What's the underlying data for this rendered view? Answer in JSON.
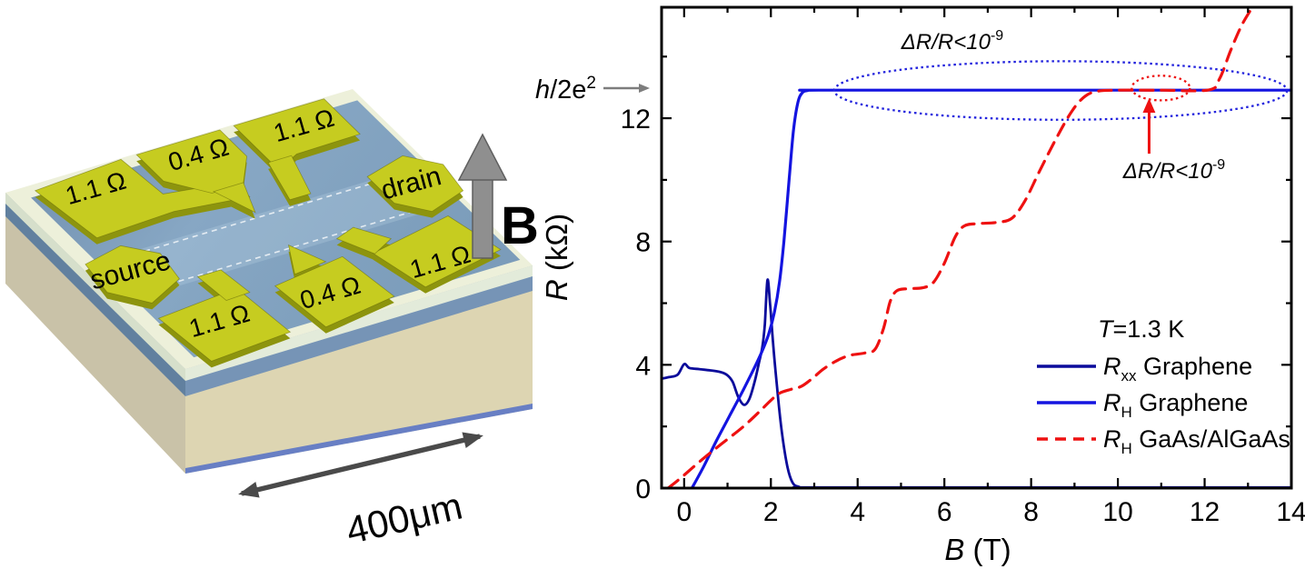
{
  "device_panel": {
    "contacts": [
      {
        "label": "1.1 Ω"
      },
      {
        "label": "0.4 Ω"
      },
      {
        "label": "1.1 Ω"
      },
      {
        "label": "drain"
      },
      {
        "label": "source"
      },
      {
        "label": "1.1 Ω"
      },
      {
        "label": "0.4 Ω"
      },
      {
        "label": "1.1 Ω"
      }
    ],
    "field_label": "B",
    "scale_label": "400μm",
    "gold_color": "#c6cc20",
    "surface_color": "#7e9cba"
  },
  "chart_data": {
    "type": "line",
    "title": "",
    "xlabel_italic": "B",
    "xlabel_rest": " (T)",
    "ylabel_italic": "R",
    "ylabel_rest": " (kΩ)",
    "xlim": [
      -0.52,
      14
    ],
    "ylim": [
      0,
      15.6
    ],
    "xticks_major": [
      0,
      2,
      4,
      6,
      8,
      10,
      12,
      14
    ],
    "xticks_minor": [
      1,
      3,
      5,
      7,
      9,
      11,
      13
    ],
    "yticks_major": [
      0,
      4,
      8,
      12
    ],
    "yticks_minor": [
      2,
      6,
      10,
      14
    ],
    "grid": false,
    "plateau_resistance_kohm": 12.906,
    "series": [
      {
        "name": "Rxx Graphene",
        "color": "#0b0b9b",
        "style": "solid",
        "width": 2.8,
        "points": [
          [
            -0.52,
            3.55
          ],
          [
            -0.35,
            3.6
          ],
          [
            -0.15,
            3.68
          ],
          [
            0.0,
            4.02
          ],
          [
            0.12,
            3.9
          ],
          [
            0.35,
            3.86
          ],
          [
            0.6,
            3.82
          ],
          [
            0.85,
            3.76
          ],
          [
            1.0,
            3.66
          ],
          [
            1.12,
            3.44
          ],
          [
            1.25,
            2.95
          ],
          [
            1.38,
            2.7
          ],
          [
            1.5,
            2.88
          ],
          [
            1.62,
            3.42
          ],
          [
            1.73,
            4.1
          ],
          [
            1.8,
            4.55
          ],
          [
            1.86,
            5.3
          ],
          [
            1.92,
            6.75
          ],
          [
            1.98,
            6.0
          ],
          [
            2.05,
            4.7
          ],
          [
            2.14,
            3.3
          ],
          [
            2.25,
            1.85
          ],
          [
            2.38,
            0.7
          ],
          [
            2.5,
            0.18
          ],
          [
            2.65,
            0.04
          ],
          [
            3.0,
            0.02
          ],
          [
            8.0,
            0.02
          ],
          [
            14,
            0.02
          ]
        ]
      },
      {
        "name": "RH Graphene",
        "color": "#1414e0",
        "style": "solid",
        "width": 3.2,
        "points": [
          [
            0.18,
            0.0
          ],
          [
            0.45,
            0.7
          ],
          [
            0.75,
            1.55
          ],
          [
            1.05,
            2.35
          ],
          [
            1.35,
            3.15
          ],
          [
            1.6,
            3.85
          ],
          [
            1.8,
            4.45
          ],
          [
            1.95,
            5.0
          ],
          [
            2.08,
            5.7
          ],
          [
            2.2,
            6.7
          ],
          [
            2.3,
            8.0
          ],
          [
            2.42,
            10.0
          ],
          [
            2.52,
            11.6
          ],
          [
            2.62,
            12.5
          ],
          [
            2.72,
            12.82
          ],
          [
            2.85,
            12.9
          ],
          [
            3.1,
            12.91
          ],
          [
            8,
            12.91
          ],
          [
            14,
            12.91
          ]
        ]
      },
      {
        "name": "RH GaAs/AlGaAs",
        "color": "#ee1111",
        "style": "dashed",
        "width": 3.2,
        "points": [
          [
            -0.37,
            0.0
          ],
          [
            -0.1,
            0.3
          ],
          [
            0.35,
            0.85
          ],
          [
            0.85,
            1.42
          ],
          [
            1.35,
            1.98
          ],
          [
            1.75,
            2.5
          ],
          [
            2.0,
            2.85
          ],
          [
            2.2,
            3.08
          ],
          [
            2.45,
            3.2
          ],
          [
            2.7,
            3.3
          ],
          [
            2.95,
            3.55
          ],
          [
            3.2,
            3.85
          ],
          [
            3.5,
            4.12
          ],
          [
            3.8,
            4.3
          ],
          [
            4.15,
            4.38
          ],
          [
            4.4,
            4.5
          ],
          [
            4.6,
            5.2
          ],
          [
            4.75,
            6.05
          ],
          [
            4.9,
            6.4
          ],
          [
            5.15,
            6.47
          ],
          [
            5.5,
            6.5
          ],
          [
            5.75,
            6.68
          ],
          [
            6.0,
            7.3
          ],
          [
            6.25,
            8.15
          ],
          [
            6.45,
            8.5
          ],
          [
            6.75,
            8.58
          ],
          [
            7.2,
            8.62
          ],
          [
            7.55,
            8.75
          ],
          [
            7.85,
            9.3
          ],
          [
            8.2,
            10.3
          ],
          [
            8.6,
            11.4
          ],
          [
            8.95,
            12.25
          ],
          [
            9.25,
            12.72
          ],
          [
            9.55,
            12.88
          ],
          [
            10.0,
            12.91
          ],
          [
            11.0,
            12.91
          ],
          [
            12.1,
            12.92
          ],
          [
            12.35,
            13.3
          ],
          [
            12.6,
            14.2
          ],
          [
            12.85,
            15.0
          ],
          [
            13.1,
            15.6
          ]
        ]
      }
    ],
    "annotations": {
      "plateau_label": {
        "h": "h",
        "mid": "/2e",
        "sup": "2"
      },
      "blue_note": {
        "main": "ΔR/R<10",
        "sup": "-9",
        "color": "#2222dd"
      },
      "red_note": {
        "main": "ΔR/R<10",
        "sup": "-9",
        "color": "#ee1111"
      },
      "blue_ellipse": {
        "cx": 8.68,
        "cy": 12.9,
        "rx": 5.22,
        "ry": 0.95
      },
      "red_ellipse": {
        "cx": 10.99,
        "cy": 12.98,
        "rx": 0.67,
        "ry": 0.4
      },
      "red_arrow": {
        "x": 10.72,
        "y_from": 10.85,
        "y_to": 12.5
      }
    },
    "legend": {
      "temperature": {
        "italic": "T",
        "rest": "=1.3 K"
      },
      "items": [
        {
          "symbol": "R",
          "sub": "xx",
          "rest": " Graphene",
          "color": "#0b0b9b",
          "dash": false
        },
        {
          "symbol": "R",
          "sub": "H",
          "rest": " Graphene",
          "color": "#1414e0",
          "dash": false
        },
        {
          "symbol": "R",
          "sub": "H",
          "rest": " GaAs/AlGaAs",
          "color": "#ee1111",
          "dash": true
        }
      ]
    }
  }
}
